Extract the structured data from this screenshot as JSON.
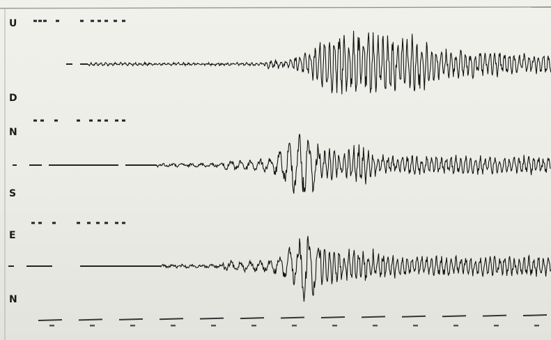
{
  "record": {
    "labels": {
      "up": "U",
      "down": "D",
      "north_top": "N",
      "south": "S",
      "east": "E",
      "north_bottom": "N"
    }
  }
}
